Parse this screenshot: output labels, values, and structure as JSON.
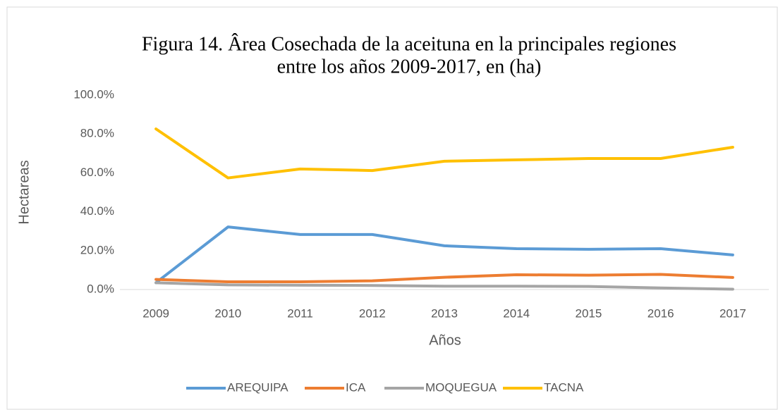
{
  "chart_data": {
    "type": "line",
    "title": [
      "Figura 14. Ârea Cosechada de la aceituna en la principales regiones",
      "entre los años 2009-2017, en (ha)"
    ],
    "x_label": "Años",
    "y_label": "Hectareas",
    "categories": [
      "2009",
      "2010",
      "2011",
      "2012",
      "2013",
      "2014",
      "2015",
      "2016",
      "2017"
    ],
    "series": [
      {
        "name": "AREQUIPA",
        "color": "#5b9bd5",
        "values": [
          3.5,
          32.2,
          28.3,
          28.3,
          22.5,
          21,
          20.7,
          21,
          17.8
        ]
      },
      {
        "name": "ICA",
        "color": "#ed7d31",
        "values": [
          5.2,
          4,
          4,
          4.5,
          6.3,
          7.6,
          7.4,
          7.8,
          6.2
        ]
      },
      {
        "name": "MOQUEGUA",
        "color": "#a5a5a5",
        "values": [
          3.5,
          2.4,
          2.2,
          2.1,
          1.7,
          1.7,
          1.6,
          0.8,
          0.2
        ]
      },
      {
        "name": "TACNA",
        "color": "#ffc000",
        "values": [
          82.6,
          57.4,
          62,
          61.2,
          66,
          66.7,
          67.4,
          67.4,
          73.2
        ]
      }
    ],
    "ylim": [
      0,
      100
    ],
    "yticks": [
      {
        "value": 0,
        "label": "0.0%"
      },
      {
        "value": 20,
        "label": "20.0%"
      },
      {
        "value": 40,
        "label": "40.0%"
      },
      {
        "value": 60,
        "label": "60.0%"
      },
      {
        "value": 80,
        "label": "80.0%"
      },
      {
        "value": 100,
        "label": "100.0%"
      }
    ],
    "grid": false,
    "legend": "bottom"
  }
}
